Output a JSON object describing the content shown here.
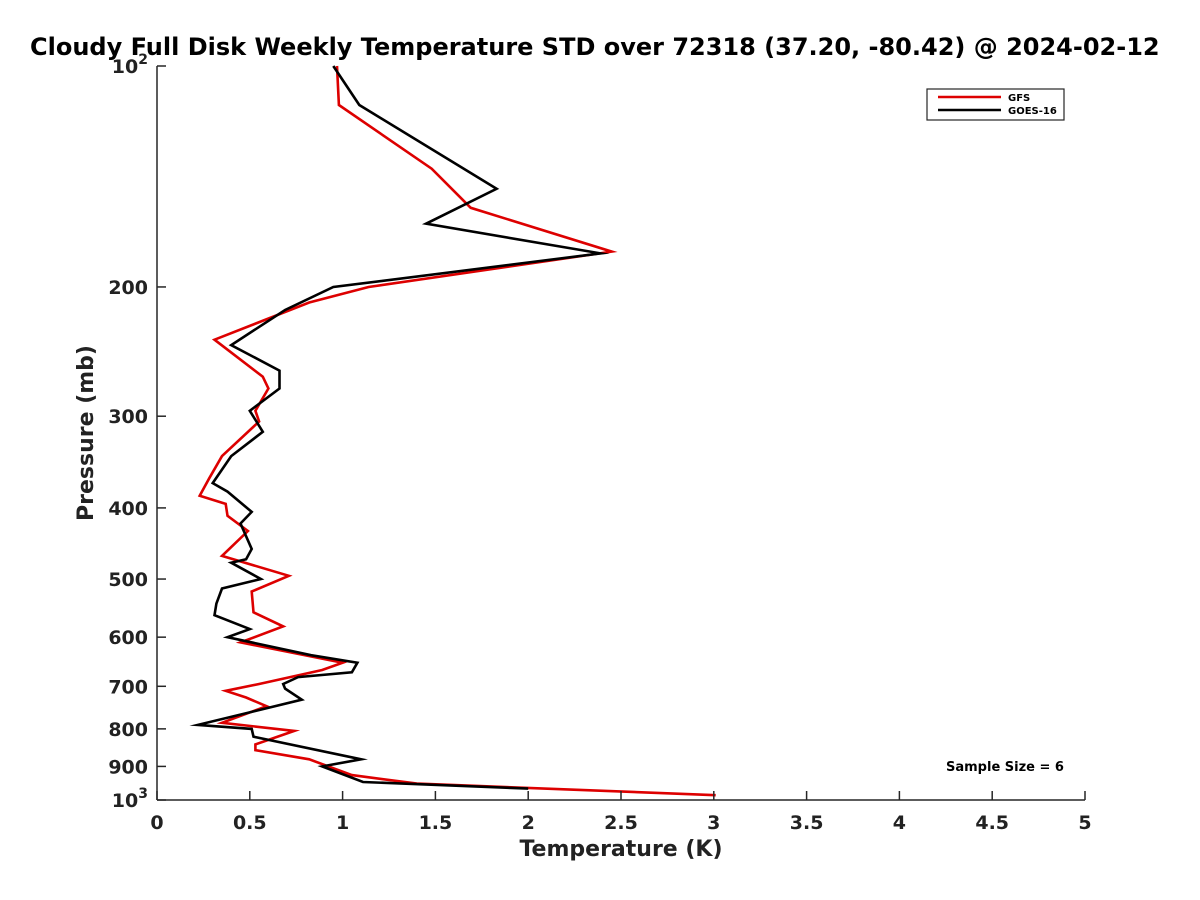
{
  "chart_data": {
    "type": "line",
    "title": "Cloudy Full Disk Weekly Temperature STD over 72318 (37.20, -80.42) @ 2024-02-12",
    "xlabel": "Temperature (K)",
    "ylabel": "Pressure (mb)",
    "xlim": [
      0,
      5
    ],
    "ylim": [
      100,
      1000
    ],
    "yscale": "log",
    "yreversed": true,
    "x_ticks": [
      0,
      0.5,
      1,
      1.5,
      2,
      2.5,
      3,
      3.5,
      4,
      4.5,
      5
    ],
    "x_tick_labels": [
      "0",
      "0.5",
      "1",
      "1.5",
      "2",
      "2.5",
      "3",
      "3.5",
      "4",
      "4.5",
      "5"
    ],
    "y_ticks": [
      100,
      200,
      300,
      400,
      500,
      600,
      700,
      800,
      900,
      1000
    ],
    "y_tick_labels": [
      {
        "base": "10",
        "exp": "2"
      },
      {
        "base": "200",
        "exp": ""
      },
      {
        "base": "300",
        "exp": ""
      },
      {
        "base": "400",
        "exp": ""
      },
      {
        "base": "500",
        "exp": ""
      },
      {
        "base": "600",
        "exp": ""
      },
      {
        "base": "700",
        "exp": ""
      },
      {
        "base": "800",
        "exp": ""
      },
      {
        "base": "900",
        "exp": ""
      },
      {
        "base": "10",
        "exp": "3"
      }
    ],
    "legend_position": "top-right",
    "annotation": "Sample Size = 6",
    "series": [
      {
        "name": "GFS",
        "color": "#dd0000",
        "points": [
          [
            0.97,
            100
          ],
          [
            0.98,
            113
          ],
          [
            1.48,
            138
          ],
          [
            1.69,
            156
          ],
          [
            2.45,
            179
          ],
          [
            1.14,
            200
          ],
          [
            0.82,
            210
          ],
          [
            0.31,
            236
          ],
          [
            0.57,
            265
          ],
          [
            0.6,
            275
          ],
          [
            0.53,
            295
          ],
          [
            0.55,
            305
          ],
          [
            0.35,
            340
          ],
          [
            0.28,
            365
          ],
          [
            0.23,
            385
          ],
          [
            0.37,
            395
          ],
          [
            0.38,
            410
          ],
          [
            0.49,
            430
          ],
          [
            0.35,
            465
          ],
          [
            0.71,
            495
          ],
          [
            0.51,
            520
          ],
          [
            0.52,
            555
          ],
          [
            0.68,
            580
          ],
          [
            0.45,
            610
          ],
          [
            1.0,
            650
          ],
          [
            0.89,
            665
          ],
          [
            0.55,
            695
          ],
          [
            0.37,
            710
          ],
          [
            0.48,
            725
          ],
          [
            0.59,
            745
          ],
          [
            0.35,
            785
          ],
          [
            0.74,
            805
          ],
          [
            0.53,
            840
          ],
          [
            0.53,
            855
          ],
          [
            0.82,
            880
          ],
          [
            1.05,
            925
          ],
          [
            1.4,
            950
          ],
          [
            3.01,
            985
          ]
        ]
      },
      {
        "name": "GOES-16",
        "color": "#000000",
        "points": [
          [
            0.95,
            100
          ],
          [
            1.09,
            113
          ],
          [
            1.83,
            147
          ],
          [
            1.45,
            164
          ],
          [
            2.39,
            180
          ],
          [
            0.95,
            200
          ],
          [
            0.69,
            215
          ],
          [
            0.4,
            240
          ],
          [
            0.66,
            260
          ],
          [
            0.66,
            275
          ],
          [
            0.5,
            295
          ],
          [
            0.57,
            315
          ],
          [
            0.4,
            340
          ],
          [
            0.3,
            370
          ],
          [
            0.38,
            380
          ],
          [
            0.51,
            405
          ],
          [
            0.45,
            420
          ],
          [
            0.51,
            455
          ],
          [
            0.48,
            470
          ],
          [
            0.4,
            475
          ],
          [
            0.56,
            500
          ],
          [
            0.35,
            515
          ],
          [
            0.32,
            540
          ],
          [
            0.31,
            560
          ],
          [
            0.5,
            585
          ],
          [
            0.38,
            600
          ],
          [
            0.83,
            635
          ],
          [
            1.08,
            650
          ],
          [
            1.05,
            670
          ],
          [
            0.76,
            680
          ],
          [
            0.68,
            695
          ],
          [
            0.69,
            705
          ],
          [
            0.78,
            730
          ],
          [
            0.22,
            790
          ],
          [
            0.51,
            800
          ],
          [
            0.52,
            820
          ],
          [
            1.1,
            880
          ],
          [
            0.89,
            900
          ],
          [
            1.11,
            945
          ],
          [
            2.0,
            965
          ]
        ]
      }
    ]
  }
}
